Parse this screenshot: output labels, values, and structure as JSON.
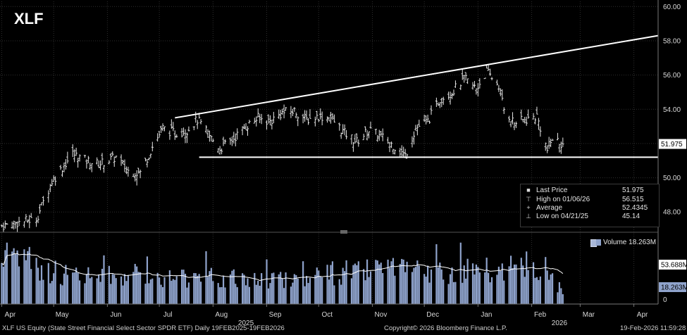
{
  "title": "XLF",
  "colors": {
    "background": "#000000",
    "grid": "#2e2e2e",
    "price_bars": "#e8e8e8",
    "trendline": "#ffffff",
    "volume_bars": "#8fa3cc",
    "volume_ma": "#ffffff",
    "last_price_tag": "#ffffff",
    "volume_tag": "#8fa3cc"
  },
  "chart_data": [
    {
      "type": "ohlc",
      "series_name": "Last Price",
      "x_range": [
        "2025-03-31",
        "2026-04-15"
      ],
      "ylim": [
        46.9,
        60.3
      ],
      "y_ticks": [
        48.0,
        50.0,
        52.0,
        54.0,
        56.0,
        58.0,
        60.0
      ],
      "y_tick_labels": [
        "48.00",
        "50.00",
        "52.00",
        "54.00",
        "56.00",
        "58.00",
        "60.00"
      ],
      "grid": true,
      "price_path": [
        [
          "2025-04-01",
          47.2
        ],
        [
          "2025-04-21",
          47.6
        ],
        [
          "2025-04-30",
          49.8
        ],
        [
          "2025-05-12",
          51.4
        ],
        [
          "2025-05-20",
          51.0
        ],
        [
          "2025-05-27",
          50.8
        ],
        [
          "2025-06-06",
          51.2
        ],
        [
          "2025-06-13",
          50.4
        ],
        [
          "2025-06-20",
          50.3
        ],
        [
          "2025-06-27",
          51.8
        ],
        [
          "2025-07-03",
          52.9
        ],
        [
          "2025-07-10",
          52.6
        ],
        [
          "2025-07-17",
          52.8
        ],
        [
          "2025-07-23",
          53.4
        ],
        [
          "2025-07-31",
          52.3
        ],
        [
          "2025-08-05",
          51.7
        ],
        [
          "2025-08-12",
          52.2
        ],
        [
          "2025-08-20",
          53.0
        ],
        [
          "2025-08-27",
          53.5
        ],
        [
          "2025-09-03",
          53.3
        ],
        [
          "2025-09-10",
          53.8
        ],
        [
          "2025-09-17",
          53.9
        ],
        [
          "2025-09-24",
          53.4
        ],
        [
          "2025-10-01",
          53.6
        ],
        [
          "2025-10-08",
          53.5
        ],
        [
          "2025-10-16",
          52.6
        ],
        [
          "2025-10-23",
          52.1
        ],
        [
          "2025-10-30",
          52.8
        ],
        [
          "2025-11-06",
          52.4
        ],
        [
          "2025-11-13",
          51.9
        ],
        [
          "2025-11-20",
          51.3
        ],
        [
          "2025-11-26",
          52.9
        ],
        [
          "2025-12-03",
          53.3
        ],
        [
          "2025-12-10",
          54.6
        ],
        [
          "2025-12-17",
          55.0
        ],
        [
          "2025-12-24",
          55.8
        ],
        [
          "2025-12-31",
          55.2
        ],
        [
          "2026-01-06",
          56.2
        ],
        [
          "2026-01-13",
          55.4
        ],
        [
          "2026-01-16",
          54.0
        ],
        [
          "2026-01-22",
          53.2
        ],
        [
          "2026-01-29",
          53.4
        ],
        [
          "2026-02-04",
          53.6
        ],
        [
          "2026-02-10",
          51.6
        ],
        [
          "2026-02-13",
          52.3
        ],
        [
          "2026-02-19",
          51.975
        ]
      ],
      "annotations": {
        "upper_trendline": [
          [
            "2025-07-10",
            53.5
          ],
          [
            "2026-04-15",
            58.3
          ]
        ],
        "lower_trendline": [
          [
            "2025-07-24",
            51.2
          ],
          [
            "2026-04-15",
            51.2
          ]
        ]
      },
      "last_price_label": "51.975"
    },
    {
      "type": "bar",
      "series_name": "Volume",
      "y_ticks": [
        0
      ],
      "y_tick_labels": [
        "0"
      ],
      "ylim": [
        0,
        110
      ],
      "volume_path": [
        [
          "2025-04-01",
          70
        ],
        [
          "2025-04-08",
          95
        ],
        [
          "2025-04-22",
          55
        ],
        [
          "2025-05-15",
          45
        ],
        [
          "2025-06-20",
          48
        ],
        [
          "2025-07-15",
          44
        ],
        [
          "2025-08-20",
          40
        ],
        [
          "2025-09-15",
          42
        ],
        [
          "2025-10-15",
          52
        ],
        [
          "2025-11-10",
          55
        ],
        [
          "2025-12-05",
          50
        ],
        [
          "2025-12-20",
          56
        ],
        [
          "2026-01-10",
          54
        ],
        [
          "2026-01-25",
          62
        ],
        [
          "2026-02-10",
          60
        ],
        [
          "2026-02-19",
          16
        ]
      ],
      "ma_value_label": "53.688M",
      "volume_value_label": "18.263M"
    }
  ],
  "x_axis": {
    "month_labels": [
      {
        "label": "Apr",
        "date": "2025-04-01"
      },
      {
        "label": "May",
        "date": "2025-05-01"
      },
      {
        "label": "Jun",
        "date": "2025-06-01"
      },
      {
        "label": "Jul",
        "date": "2025-07-01"
      },
      {
        "label": "Aug",
        "date": "2025-08-01"
      },
      {
        "label": "Sep",
        "date": "2025-09-01"
      },
      {
        "label": "Oct",
        "date": "2025-10-01"
      },
      {
        "label": "Nov",
        "date": "2025-11-01"
      },
      {
        "label": "Dec",
        "date": "2025-12-01"
      },
      {
        "label": "Jan",
        "date": "2026-01-01"
      },
      {
        "label": "Feb",
        "date": "2026-02-01"
      },
      {
        "label": "Mar",
        "date": "2026-03-01"
      },
      {
        "label": "Apr",
        "date": "2026-04-01"
      }
    ],
    "year_labels": [
      {
        "label": "2025",
        "date": "2025-08-20"
      },
      {
        "label": "2026",
        "date": "2026-02-17"
      }
    ]
  },
  "legend": {
    "last_price_label": "Last Price",
    "last_price_value": "51.975",
    "high_label": "High on 01/06/26",
    "high_value": "56.515",
    "average_label": "Average",
    "average_value": "52.4345",
    "low_label": "Low on 04/21/25",
    "low_value": "45.14"
  },
  "volume_legend": {
    "label": "Volume",
    "value": "18.263M"
  },
  "footer": {
    "left": "XLF US Equity (State Street Financial Select Sector SPDR ETF) Daily 19FEB2025-19FEB2026",
    "center": "Copyright© 2026 Bloomberg Finance L.P.",
    "right": "19-Feb-2026 11:59:28"
  }
}
